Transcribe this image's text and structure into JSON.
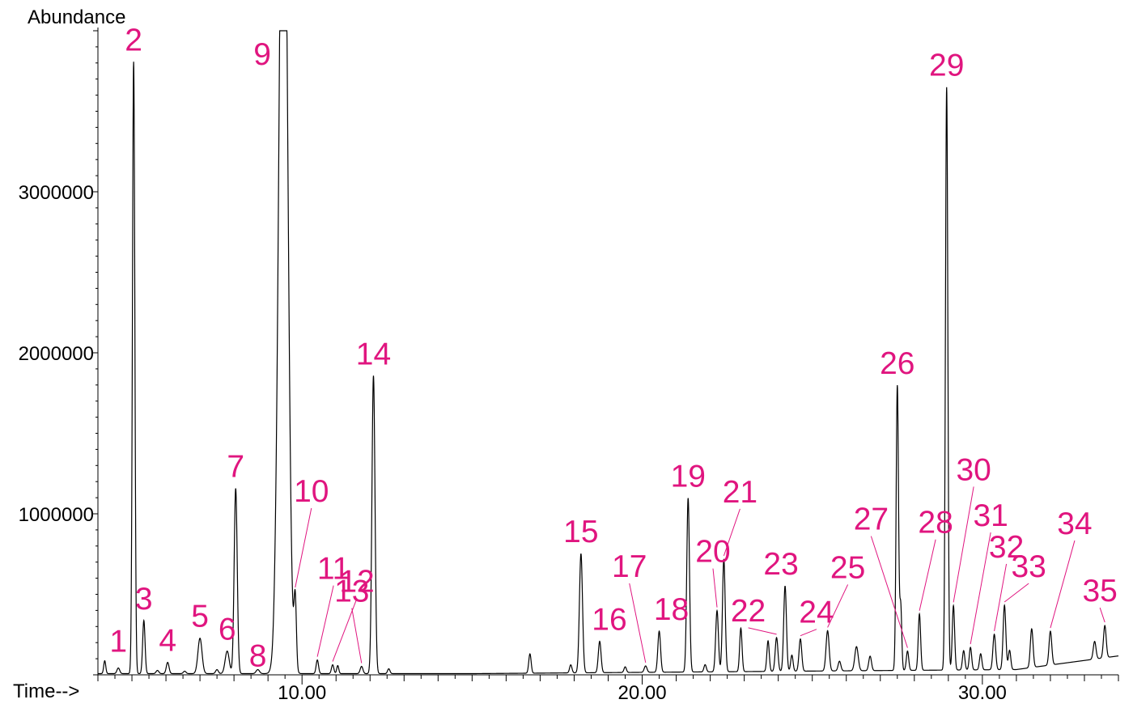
{
  "chart_data": {
    "type": "line",
    "ylabel": "Abundance",
    "xlabel": "Time-->",
    "xlim": [
      4.0,
      34.0
    ],
    "ylim": [
      0,
      4000000
    ],
    "x_ticks": [
      {
        "value": 10,
        "label": "10.00"
      },
      {
        "value": 20,
        "label": "20.00"
      },
      {
        "value": 30,
        "label": "30.00"
      }
    ],
    "y_ticks": [
      {
        "value": 1000000,
        "label": "1000000"
      },
      {
        "value": 2000000,
        "label": "2000000"
      },
      {
        "value": 3000000,
        "label": "3000000"
      }
    ],
    "grid": false,
    "colors": {
      "trace": "#000000",
      "labels": "#e0157f"
    },
    "baseline": 50000,
    "peaks": [
      {
        "label": "1",
        "t": 4.6,
        "height": 35000,
        "width": 0.04
      },
      {
        "label": "2",
        "t": 5.05,
        "height": 3800000,
        "width": 0.035
      },
      {
        "label": "3",
        "t": 5.35,
        "height": 330000,
        "width": 0.035
      },
      {
        "label": "4",
        "t": 6.05,
        "height": 70000,
        "width": 0.04
      },
      {
        "label": "5",
        "t": 7.0,
        "height": 220000,
        "width": 0.06
      },
      {
        "label": "6",
        "t": 7.8,
        "height": 140000,
        "width": 0.06
      },
      {
        "label": "7",
        "t": 8.05,
        "height": 1150000,
        "width": 0.045
      },
      {
        "label": "8",
        "t": 8.7,
        "height": 25000,
        "width": 0.05
      },
      {
        "label": "9",
        "t": 9.45,
        "height": 6000000,
        "width": 0.12
      },
      {
        "label": "10",
        "t": 9.8,
        "height": 430000,
        "width": 0.035
      },
      {
        "label": "11",
        "t": 10.45,
        "height": 85000,
        "width": 0.035
      },
      {
        "label": "12",
        "t": 10.9,
        "height": 55000,
        "width": 0.035
      },
      {
        "label": "13",
        "t": 11.75,
        "height": 45000,
        "width": 0.04
      },
      {
        "label": "14",
        "t": 12.1,
        "height": 1850000,
        "width": 0.045
      },
      {
        "label": "15",
        "t": 18.2,
        "height": 740000,
        "width": 0.045
      },
      {
        "label": "16",
        "t": 18.75,
        "height": 195000,
        "width": 0.04
      },
      {
        "label": "17",
        "t": 20.1,
        "height": 40000,
        "width": 0.04
      },
      {
        "label": "18",
        "t": 20.5,
        "height": 255000,
        "width": 0.04
      },
      {
        "label": "19",
        "t": 21.35,
        "height": 1080000,
        "width": 0.04
      },
      {
        "label": "20",
        "t": 22.2,
        "height": 380000,
        "width": 0.04
      },
      {
        "label": "21",
        "t": 22.4,
        "height": 700000,
        "width": 0.04
      },
      {
        "label": "22",
        "t": 23.95,
        "height": 210000,
        "width": 0.04
      },
      {
        "label": "23",
        "t": 24.2,
        "height": 530000,
        "width": 0.04
      },
      {
        "label": "24",
        "t": 24.65,
        "height": 200000,
        "width": 0.04
      },
      {
        "label": "25",
        "t": 25.45,
        "height": 250000,
        "width": 0.045
      },
      {
        "label": "26",
        "t": 27.5,
        "height": 1770000,
        "width": 0.035
      },
      {
        "label": "27",
        "t": 27.8,
        "height": 120000,
        "width": 0.035
      },
      {
        "label": "28",
        "t": 28.15,
        "height": 350000,
        "width": 0.035
      },
      {
        "label": "29",
        "t": 28.95,
        "height": 3620000,
        "width": 0.035
      },
      {
        "label": "30",
        "t": 29.15,
        "height": 400000,
        "width": 0.035
      },
      {
        "label": "31",
        "t": 29.65,
        "height": 140000,
        "width": 0.035
      },
      {
        "label": "32",
        "t": 30.35,
        "height": 220000,
        "width": 0.04
      },
      {
        "label": "33",
        "t": 30.65,
        "height": 400000,
        "width": 0.04
      },
      {
        "label": "34",
        "t": 32.0,
        "height": 210000,
        "width": 0.04
      },
      {
        "label": "35",
        "t": 33.6,
        "height": 200000,
        "width": 0.04
      }
    ],
    "minor_peaks": [
      {
        "t": 4.2,
        "height": 80000,
        "width": 0.03
      },
      {
        "t": 5.75,
        "height": 20000,
        "width": 0.04
      },
      {
        "t": 6.55,
        "height": 15000,
        "width": 0.04
      },
      {
        "t": 7.5,
        "height": 25000,
        "width": 0.04
      },
      {
        "t": 9.2,
        "height": 30000,
        "width": 0.04
      },
      {
        "t": 11.05,
        "height": 50000,
        "width": 0.03
      },
      {
        "t": 12.55,
        "height": 30000,
        "width": 0.035
      },
      {
        "t": 16.7,
        "height": 120000,
        "width": 0.035
      },
      {
        "t": 17.9,
        "height": 50000,
        "width": 0.035
      },
      {
        "t": 19.5,
        "height": 35000,
        "width": 0.035
      },
      {
        "t": 21.85,
        "height": 45000,
        "width": 0.035
      },
      {
        "t": 22.9,
        "height": 270000,
        "width": 0.035
      },
      {
        "t": 23.7,
        "height": 190000,
        "width": 0.035
      },
      {
        "t": 24.4,
        "height": 100000,
        "width": 0.035
      },
      {
        "t": 25.8,
        "height": 60000,
        "width": 0.04
      },
      {
        "t": 26.3,
        "height": 150000,
        "width": 0.05
      },
      {
        "t": 26.7,
        "height": 90000,
        "width": 0.04
      },
      {
        "t": 27.6,
        "height": 400000,
        "width": 0.03
      },
      {
        "t": 29.45,
        "height": 120000,
        "width": 0.035
      },
      {
        "t": 29.95,
        "height": 100000,
        "width": 0.035
      },
      {
        "t": 30.8,
        "height": 120000,
        "width": 0.035
      },
      {
        "t": 31.45,
        "height": 240000,
        "width": 0.04
      },
      {
        "t": 33.3,
        "height": 110000,
        "width": 0.04
      }
    ]
  }
}
